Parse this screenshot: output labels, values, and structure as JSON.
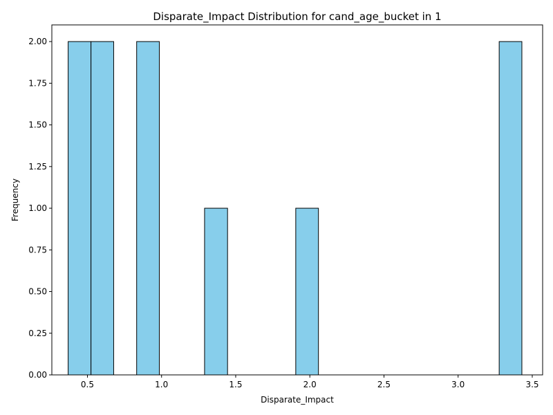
{
  "chart_data": {
    "type": "bar",
    "title": "Disparate_Impact Distribution for cand_age_bucket in 1",
    "xlabel": "Disparate_Impact",
    "ylabel": "Frequency",
    "xlim": [
      0.26,
      3.57
    ],
    "ylim": [
      0,
      2.1
    ],
    "grid": false,
    "bar_color": "#87CEEB",
    "edge_color": "#000000",
    "bins": [
      {
        "x0": 0.37,
        "x1": 0.524,
        "count": 2
      },
      {
        "x0": 0.524,
        "x1": 0.677,
        "count": 2
      },
      {
        "x0": 0.832,
        "x1": 0.985,
        "count": 2
      },
      {
        "x0": 1.29,
        "x1": 1.445,
        "count": 1
      },
      {
        "x0": 1.905,
        "x1": 2.058,
        "count": 1
      },
      {
        "x0": 3.277,
        "x1": 3.43,
        "count": 2
      }
    ],
    "x_ticks": [
      "0.5",
      "1.0",
      "1.5",
      "2.0",
      "2.5",
      "3.0",
      "3.5"
    ],
    "y_ticks": [
      "0.00",
      "0.25",
      "0.50",
      "0.75",
      "1.00",
      "1.25",
      "1.50",
      "1.75",
      "2.00"
    ]
  }
}
